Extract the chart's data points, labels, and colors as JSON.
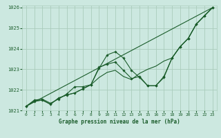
{
  "background_color": "#cce8e0",
  "grid_color": "#aaccbb",
  "line_color": "#1a5c2a",
  "marker_color": "#1a5c2a",
  "xlabel": "Graphe pression niveau de la mer (hPa)",
  "xlim": [
    -0.5,
    23.5
  ],
  "ylim": [
    1021.0,
    1026.1
  ],
  "yticks": [
    1021,
    1022,
    1023,
    1024,
    1025,
    1026
  ],
  "xticks": [
    0,
    1,
    2,
    3,
    4,
    5,
    6,
    7,
    8,
    9,
    10,
    11,
    12,
    13,
    14,
    15,
    16,
    17,
    18,
    19,
    20,
    21,
    22,
    23
  ],
  "series": [
    {
      "x": [
        0,
        1,
        2,
        3,
        4,
        5,
        6,
        7,
        8,
        9,
        10,
        11,
        12,
        13,
        14,
        15,
        16,
        17,
        18,
        19,
        20,
        21,
        22,
        23
      ],
      "y": [
        1021.2,
        1021.45,
        1021.5,
        1021.3,
        1021.6,
        1021.75,
        1021.85,
        1022.05,
        1022.25,
        1023.05,
        1023.7,
        1023.85,
        1023.55,
        1022.95,
        1022.6,
        1022.2,
        1022.2,
        1022.6,
        1023.55,
        1024.1,
        1024.5,
        1025.2,
        1025.6,
        1026.0
      ],
      "marker": true
    },
    {
      "x": [
        0,
        1,
        2,
        3,
        4,
        5,
        6,
        7,
        8,
        9,
        10,
        11,
        12,
        13,
        14,
        15,
        16,
        17,
        18,
        19,
        20,
        21,
        22,
        23
      ],
      "y": [
        1021.2,
        1021.45,
        1021.5,
        1021.3,
        1021.6,
        1021.75,
        1021.85,
        1022.05,
        1022.25,
        1022.6,
        1022.85,
        1022.95,
        1022.65,
        1022.5,
        1022.8,
        1023.0,
        1023.15,
        1023.4,
        1023.55,
        1024.1,
        1024.5,
        1025.2,
        1025.6,
        1026.0
      ],
      "marker": false
    },
    {
      "x": [
        0,
        23
      ],
      "y": [
        1021.2,
        1026.0
      ],
      "marker": false
    },
    {
      "x": [
        0,
        1,
        2,
        3,
        4,
        5,
        6,
        7,
        8,
        9,
        10,
        11,
        12,
        13,
        14,
        15,
        16,
        17,
        18,
        19,
        20,
        21,
        22,
        23
      ],
      "y": [
        1021.2,
        1021.5,
        1021.55,
        1021.35,
        1021.55,
        1021.8,
        1022.15,
        1022.15,
        1022.25,
        1023.1,
        1023.25,
        1023.35,
        1022.95,
        1022.55,
        1022.65,
        1022.2,
        1022.2,
        1022.65,
        1023.55,
        1024.1,
        1024.5,
        1025.2,
        1025.6,
        1026.0
      ],
      "marker": true
    }
  ]
}
